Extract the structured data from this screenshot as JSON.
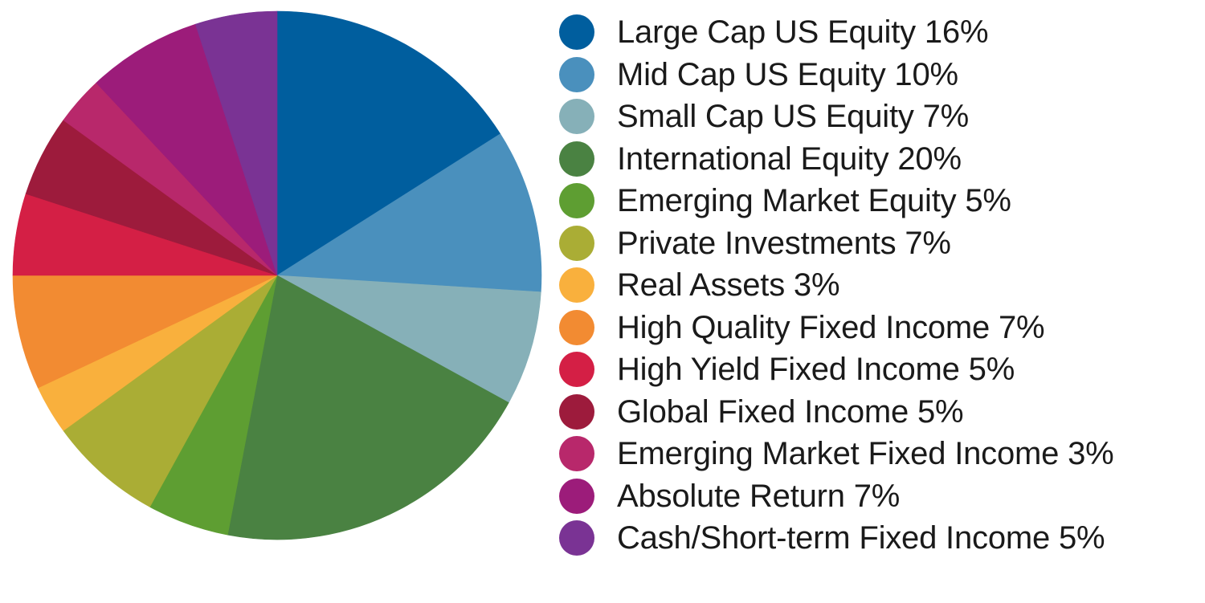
{
  "chart_data": {
    "type": "pie",
    "title": "",
    "start_angle_deg": 0,
    "direction": "clockwise",
    "legend_position": "right",
    "slices": [
      {
        "label": "Large Cap US Equity 16%",
        "value": 16,
        "color": "#005e9e"
      },
      {
        "label": "Mid Cap US Equity 10%",
        "value": 10,
        "color": "#4a90bd"
      },
      {
        "label": "Small Cap US Equity 7%",
        "value": 7,
        "color": "#86b0b8"
      },
      {
        "label": "International Equity 20%",
        "value": 20,
        "color": "#4a8242"
      },
      {
        "label": "Emerging Market Equity 5%",
        "value": 5,
        "color": "#5e9e32"
      },
      {
        "label": "Private Investments 7%",
        "value": 7,
        "color": "#aaad35"
      },
      {
        "label": "Real Assets 3%",
        "value": 3,
        "color": "#f9b03d"
      },
      {
        "label": "High Quality Fixed Income 7%",
        "value": 7,
        "color": "#f28b32"
      },
      {
        "label": "High Yield Fixed Income 5%",
        "value": 5,
        "color": "#d41f45"
      },
      {
        "label": "Global Fixed Income 5%",
        "value": 5,
        "color": "#9d1b3c"
      },
      {
        "label": "Emerging Market Fixed Income 3%",
        "value": 3,
        "color": "#b8286b"
      },
      {
        "label": "Absolute Return 7%",
        "value": 7,
        "color": "#9c1c7a"
      },
      {
        "label": "Cash/Short-term Fixed Income 5%",
        "value": 5,
        "color": "#7a3394"
      }
    ]
  }
}
